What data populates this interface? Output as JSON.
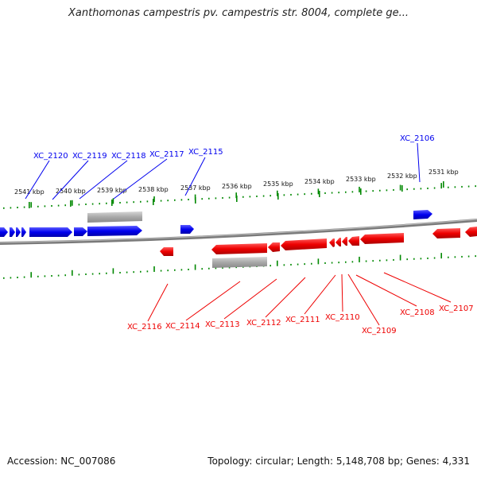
{
  "title": "Xanthomonas campestris pv. campestris str. 8004, complete ge...",
  "footer": {
    "accession_label": "Accession:",
    "accession": "NC_007086",
    "topology_label": "Topology:",
    "topology": "circular",
    "length_label": "Length:",
    "length": "5,148,708 bp",
    "genes_label": "Genes:",
    "genes": "4,331"
  },
  "colors": {
    "forward_gene": "#0000ee",
    "reverse_gene": "#ee0000",
    "ticks": "#008800",
    "backbone": "#808080",
    "highlight_bar": "#aaaaaa"
  },
  "scale_ticks": [
    {
      "label": "2541 kbp",
      "kbp": 2541
    },
    {
      "label": "2540 kbp",
      "kbp": 2540
    },
    {
      "label": "2539 kbp",
      "kbp": 2539
    },
    {
      "label": "2538 kbp",
      "kbp": 2538
    },
    {
      "label": "2537 kbp",
      "kbp": 2537
    },
    {
      "label": "2536 kbp",
      "kbp": 2536
    },
    {
      "label": "2535 kbp",
      "kbp": 2535
    },
    {
      "label": "2534 kbp",
      "kbp": 2534
    },
    {
      "label": "2533 kbp",
      "kbp": 2533
    },
    {
      "label": "2532 kbp",
      "kbp": 2532
    },
    {
      "label": "2531 kbp",
      "kbp": 2531
    }
  ],
  "forward_gene_labels": [
    "XC_2120",
    "XC_2119",
    "XC_2118",
    "XC_2117",
    "XC_2115",
    "XC_2106"
  ],
  "reverse_gene_labels": [
    "XC_2116",
    "XC_2114",
    "XC_2113",
    "XC_2112",
    "XC_2111",
    "XC_2110",
    "XC_2109",
    "XC_2108",
    "XC_2107"
  ]
}
